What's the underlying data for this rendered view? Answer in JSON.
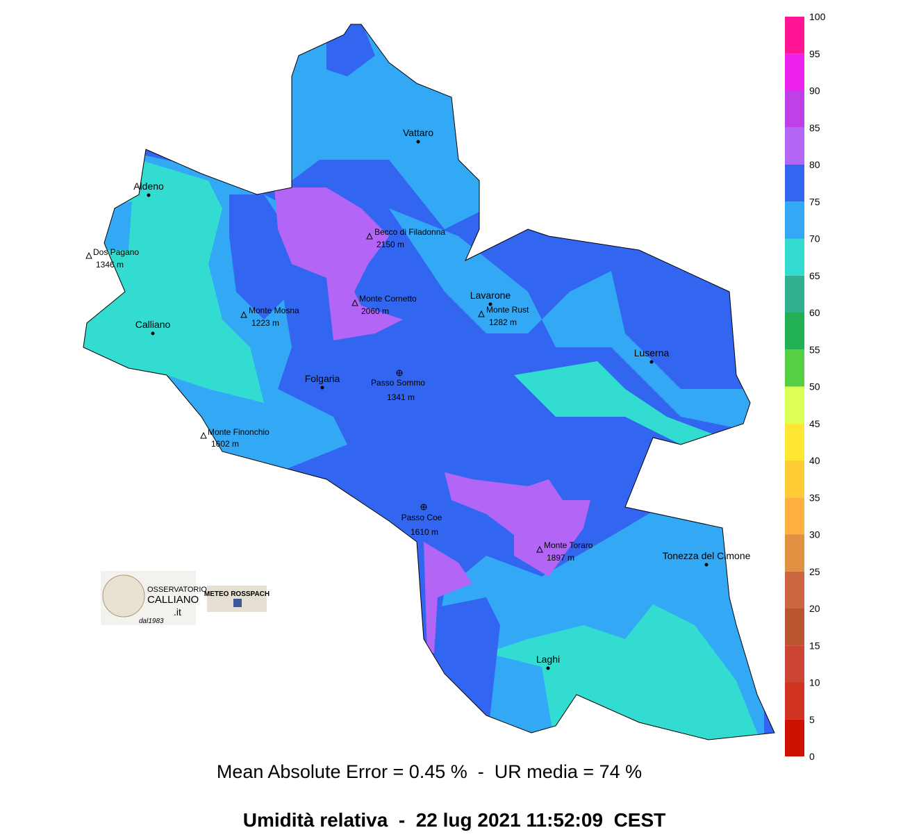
{
  "places": [
    {
      "name": "Vattaro"
    },
    {
      "name": "Aldeno"
    },
    {
      "name": "Dos Pagano",
      "elevation": "1346 m"
    },
    {
      "name": "Becco di Filadonna",
      "elevation": "2150 m"
    },
    {
      "name": "Monte Cornetto",
      "elevation": "2060 m"
    },
    {
      "name": "Monte Mosna",
      "elevation": "1223 m"
    },
    {
      "name": "Calliano"
    },
    {
      "name": "Lavarone"
    },
    {
      "name": "Monte Rust",
      "elevation": "1282 m"
    },
    {
      "name": "Luserna"
    },
    {
      "name": "Folgaria"
    },
    {
      "name": "Passo Sommo",
      "elevation": "1341 m"
    },
    {
      "name": "Monte Finonchio",
      "elevation": "1602 m"
    },
    {
      "name": "Passo Coe",
      "elevation": "1610 m"
    },
    {
      "name": "Monte Toraro",
      "elevation": "1897 m"
    },
    {
      "name": "Tonezza del Cimone"
    },
    {
      "name": "Laghi"
    }
  ],
  "colorbar": {
    "ticks": [
      0,
      5,
      10,
      15,
      20,
      25,
      30,
      35,
      40,
      45,
      50,
      55,
      60,
      65,
      70,
      75,
      80,
      85,
      90,
      95,
      100
    ],
    "colors": [
      "#cc1100",
      "#d03322",
      "#cc4433",
      "#b85530",
      "#cc6640",
      "#e09040",
      "#ffb040",
      "#ffcc33",
      "#ffe833",
      "#ddff55",
      "#55d044",
      "#22b055",
      "#33b090",
      "#33dcd0",
      "#33a8f5",
      "#3366f0",
      "#b366f5",
      "#c040e8",
      "#ee22ee",
      "#ff1493"
    ]
  },
  "logos": {
    "observatory": [
      "OSSERVATORIO",
      "CALLIANO",
      ".it",
      "dal1983"
    ],
    "meteo": "METEO ROSSPACH"
  },
  "stats": "Mean Absolute Error = 0.45 %  -  UR media = 74 %",
  "title": "Umidità relativa  -  22 lug 2021 11:52:09  CEST"
}
